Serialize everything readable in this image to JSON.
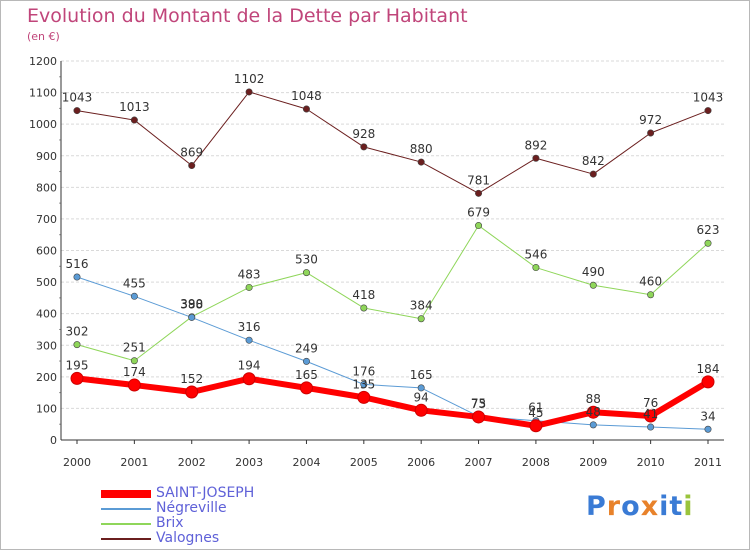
{
  "title": "Evolution du Montant de la Dette par Habitant",
  "subtitle": "(en €)",
  "logo": {
    "text": "Proxiti",
    "colors": [
      "#3a7bd5",
      "#e8822a",
      "#3a7bd5",
      "#e8822a",
      "#3a7bd5",
      "#3a7bd5",
      "#9ac43c"
    ]
  },
  "chart_data": {
    "type": "line",
    "x": [
      "2000",
      "2001",
      "2002",
      "2003",
      "2004",
      "2005",
      "2006",
      "2007",
      "2008",
      "2009",
      "2010",
      "2011"
    ],
    "ylim": [
      0,
      1200
    ],
    "yticks": [
      0,
      100,
      200,
      300,
      400,
      500,
      600,
      700,
      800,
      900,
      1000,
      1100,
      1200
    ],
    "grid": {
      "horizontal": true,
      "vertical": false
    },
    "legend_position": "bottom-left",
    "series": [
      {
        "name": "Valognes",
        "color": "#6b1f1f",
        "line_width": 1,
        "values": [
          1043,
          1013,
          869,
          1102,
          1048,
          928,
          880,
          781,
          892,
          842,
          972,
          1043
        ],
        "labels": [
          "1043",
          "1013",
          "869",
          "1102",
          "1048",
          "928",
          "880",
          "781",
          "892",
          "842",
          "972",
          "1043"
        ]
      },
      {
        "name": "Brix",
        "color": "#8fd65a",
        "line_width": 1,
        "values": [
          302,
          251,
          390,
          483,
          530,
          418,
          384,
          679,
          546,
          490,
          460,
          623
        ],
        "labels": [
          "302",
          "251",
          "390",
          "483",
          "530",
          "418",
          "384",
          "679",
          "546",
          "490",
          "460",
          "623"
        ]
      },
      {
        "name": "Négreville",
        "color": "#5b9bd5",
        "line_width": 1,
        "values": [
          516,
          455,
          388,
          316,
          249,
          176,
          165,
          75,
          61,
          48,
          41,
          34
        ],
        "labels": [
          "516",
          "455",
          "388",
          "316",
          "249",
          "176",
          "165",
          "75",
          "61",
          "48",
          "41",
          "34"
        ]
      },
      {
        "name": "SAINT-JOSEPH",
        "color": "#ff0000",
        "line_width": 6,
        "values": [
          195,
          174,
          152,
          194,
          165,
          135,
          94,
          73,
          45,
          88,
          76,
          184
        ],
        "labels": [
          "195",
          "174",
          "152",
          "194",
          "165",
          "135",
          "94",
          "73",
          "45",
          "88",
          "76",
          "184"
        ]
      }
    ]
  }
}
